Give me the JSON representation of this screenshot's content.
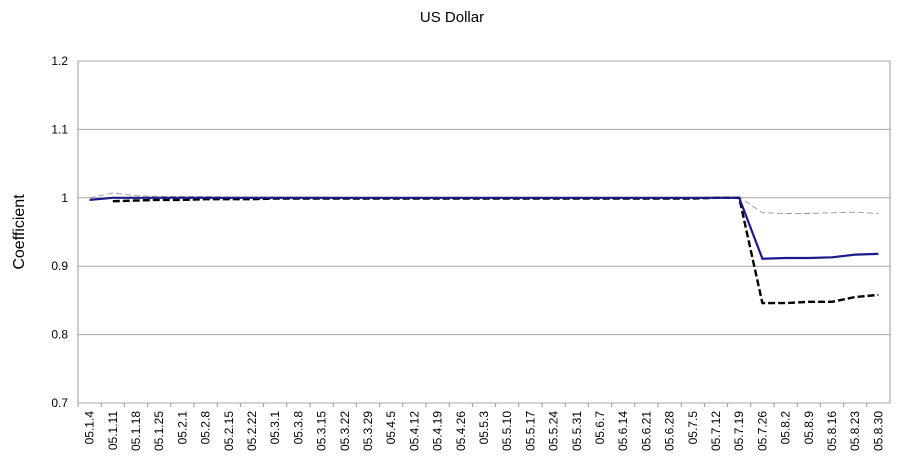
{
  "chart_data": {
    "type": "line",
    "title": "US Dollar",
    "y_label": "Coefficient",
    "categories": [
      "05.1.4",
      "05.1.11",
      "05.1.18",
      "05.1.25",
      "05.2.1",
      "05.2.8",
      "05.2.15",
      "05.2.22",
      "05.3.1",
      "05.3.8",
      "05.3.15",
      "05.3.22",
      "05.3.29",
      "05.4.5",
      "05.4.12",
      "05.4.19",
      "05.4.26",
      "05.5.3",
      "05.5.10",
      "05.5.17",
      "05.5.24",
      "05.5.31",
      "05.6.7",
      "05.6.14",
      "05.6.21",
      "05.6.28",
      "05.7.5",
      "05.7.12",
      "05.7.19",
      "05.7.26",
      "05.8.2",
      "05.8.9",
      "05.8.16",
      "05.8.23",
      "05.8.30"
    ],
    "series": [
      {
        "color": "#999999",
        "style": "thin-dashed",
        "values": [
          1.0,
          1.007,
          1.003,
          1.002,
          1.002,
          1.002,
          1.001,
          1.001,
          1.001,
          1.001,
          1.001,
          1.0,
          1.0,
          1.0,
          1.0,
          1.0,
          1.0,
          1.0,
          1.0,
          1.0,
          1.0,
          1.0,
          1.0,
          1.0,
          1.0,
          1.0,
          1.0,
          1.001,
          1.001,
          0.978,
          0.977,
          0.977,
          0.978,
          0.979,
          0.977
        ]
      },
      {
        "color": "#000000",
        "style": "dashed",
        "values": [
          null,
          0.995,
          0.996,
          0.997,
          0.997,
          0.998,
          0.998,
          0.998,
          0.999,
          0.999,
          0.999,
          0.999,
          0.999,
          0.999,
          0.999,
          0.999,
          0.999,
          0.999,
          0.999,
          0.999,
          0.999,
          0.999,
          0.999,
          0.999,
          0.999,
          0.999,
          0.999,
          1.0,
          1.0,
          0.846,
          0.846,
          0.848,
          0.848,
          0.855,
          0.858
        ]
      },
      {
        "color": "#1a1a8c",
        "style": "solid",
        "values": [
          0.997,
          1.0,
          1.0,
          1.0,
          1.0,
          1.0,
          1.0,
          1.0,
          1.0,
          1.0,
          1.0,
          1.0,
          1.0,
          1.0,
          1.0,
          1.0,
          1.0,
          1.0,
          1.0,
          1.0,
          1.0,
          1.0,
          1.0,
          1.0,
          1.0,
          1.0,
          1.0,
          1.0,
          1.0,
          0.911,
          0.912,
          0.912,
          0.913,
          0.917,
          0.918
        ]
      }
    ],
    "ylim": [
      0.7,
      1.2
    ],
    "yticks": [
      0.7,
      0.8,
      0.9,
      1,
      1.1,
      1.2
    ],
    "grid": true
  }
}
